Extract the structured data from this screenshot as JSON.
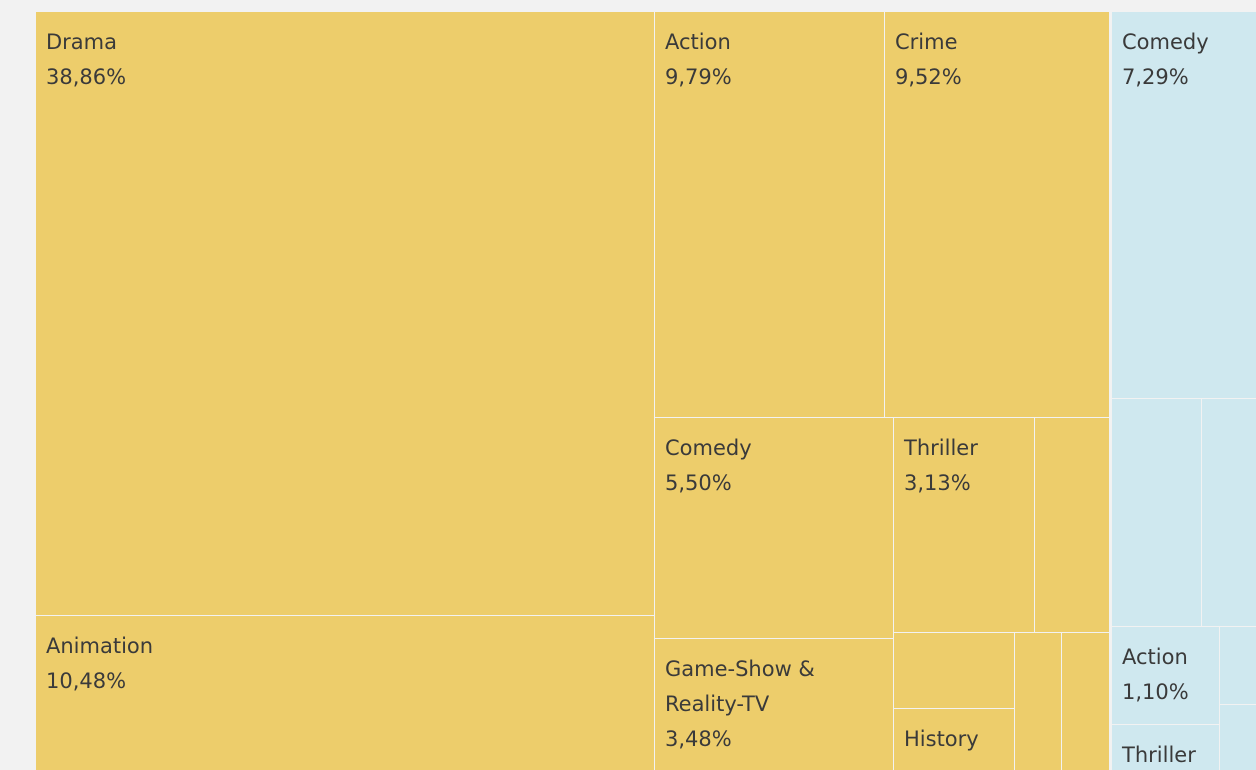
{
  "chart_data": {
    "type": "treemap",
    "groups": [
      {
        "color": "#edcd6b",
        "cells": [
          {
            "name": "Drama",
            "value": 38.86,
            "value_label": "38,86%"
          },
          {
            "name": "Animation",
            "value": 10.48,
            "value_label": "10,48%"
          },
          {
            "name": "Action",
            "value": 9.79,
            "value_label": "9,79%"
          },
          {
            "name": "Crime",
            "value": 9.52,
            "value_label": "9,52%"
          },
          {
            "name": "Comedy",
            "value": 5.5,
            "value_label": "5,50%"
          },
          {
            "name": "Thriller",
            "value": 3.13,
            "value_label": "3,13%"
          },
          {
            "value": 1.65
          },
          {
            "name": "Game-Show & Reality-TV",
            "value": 3.48,
            "value_label": "3,48%"
          },
          {
            "value": 0.94
          },
          {
            "name": "History",
            "value": 0.75
          },
          {
            "value": 0.7
          },
          {
            "value": 0.7
          }
        ]
      },
      {
        "color": "#cfe8ef",
        "cells": [
          {
            "name": "Comedy",
            "value": 7.29,
            "value_label": "7,29%"
          },
          {
            "value": 2.1
          },
          {
            "value": 1.3
          },
          {
            "name": "Action",
            "value": 1.1,
            "value_label": "1,10%"
          },
          {
            "value": 0.3
          },
          {
            "value": 0.25
          },
          {
            "name": "Thriller",
            "value": 0.5
          }
        ]
      }
    ]
  }
}
